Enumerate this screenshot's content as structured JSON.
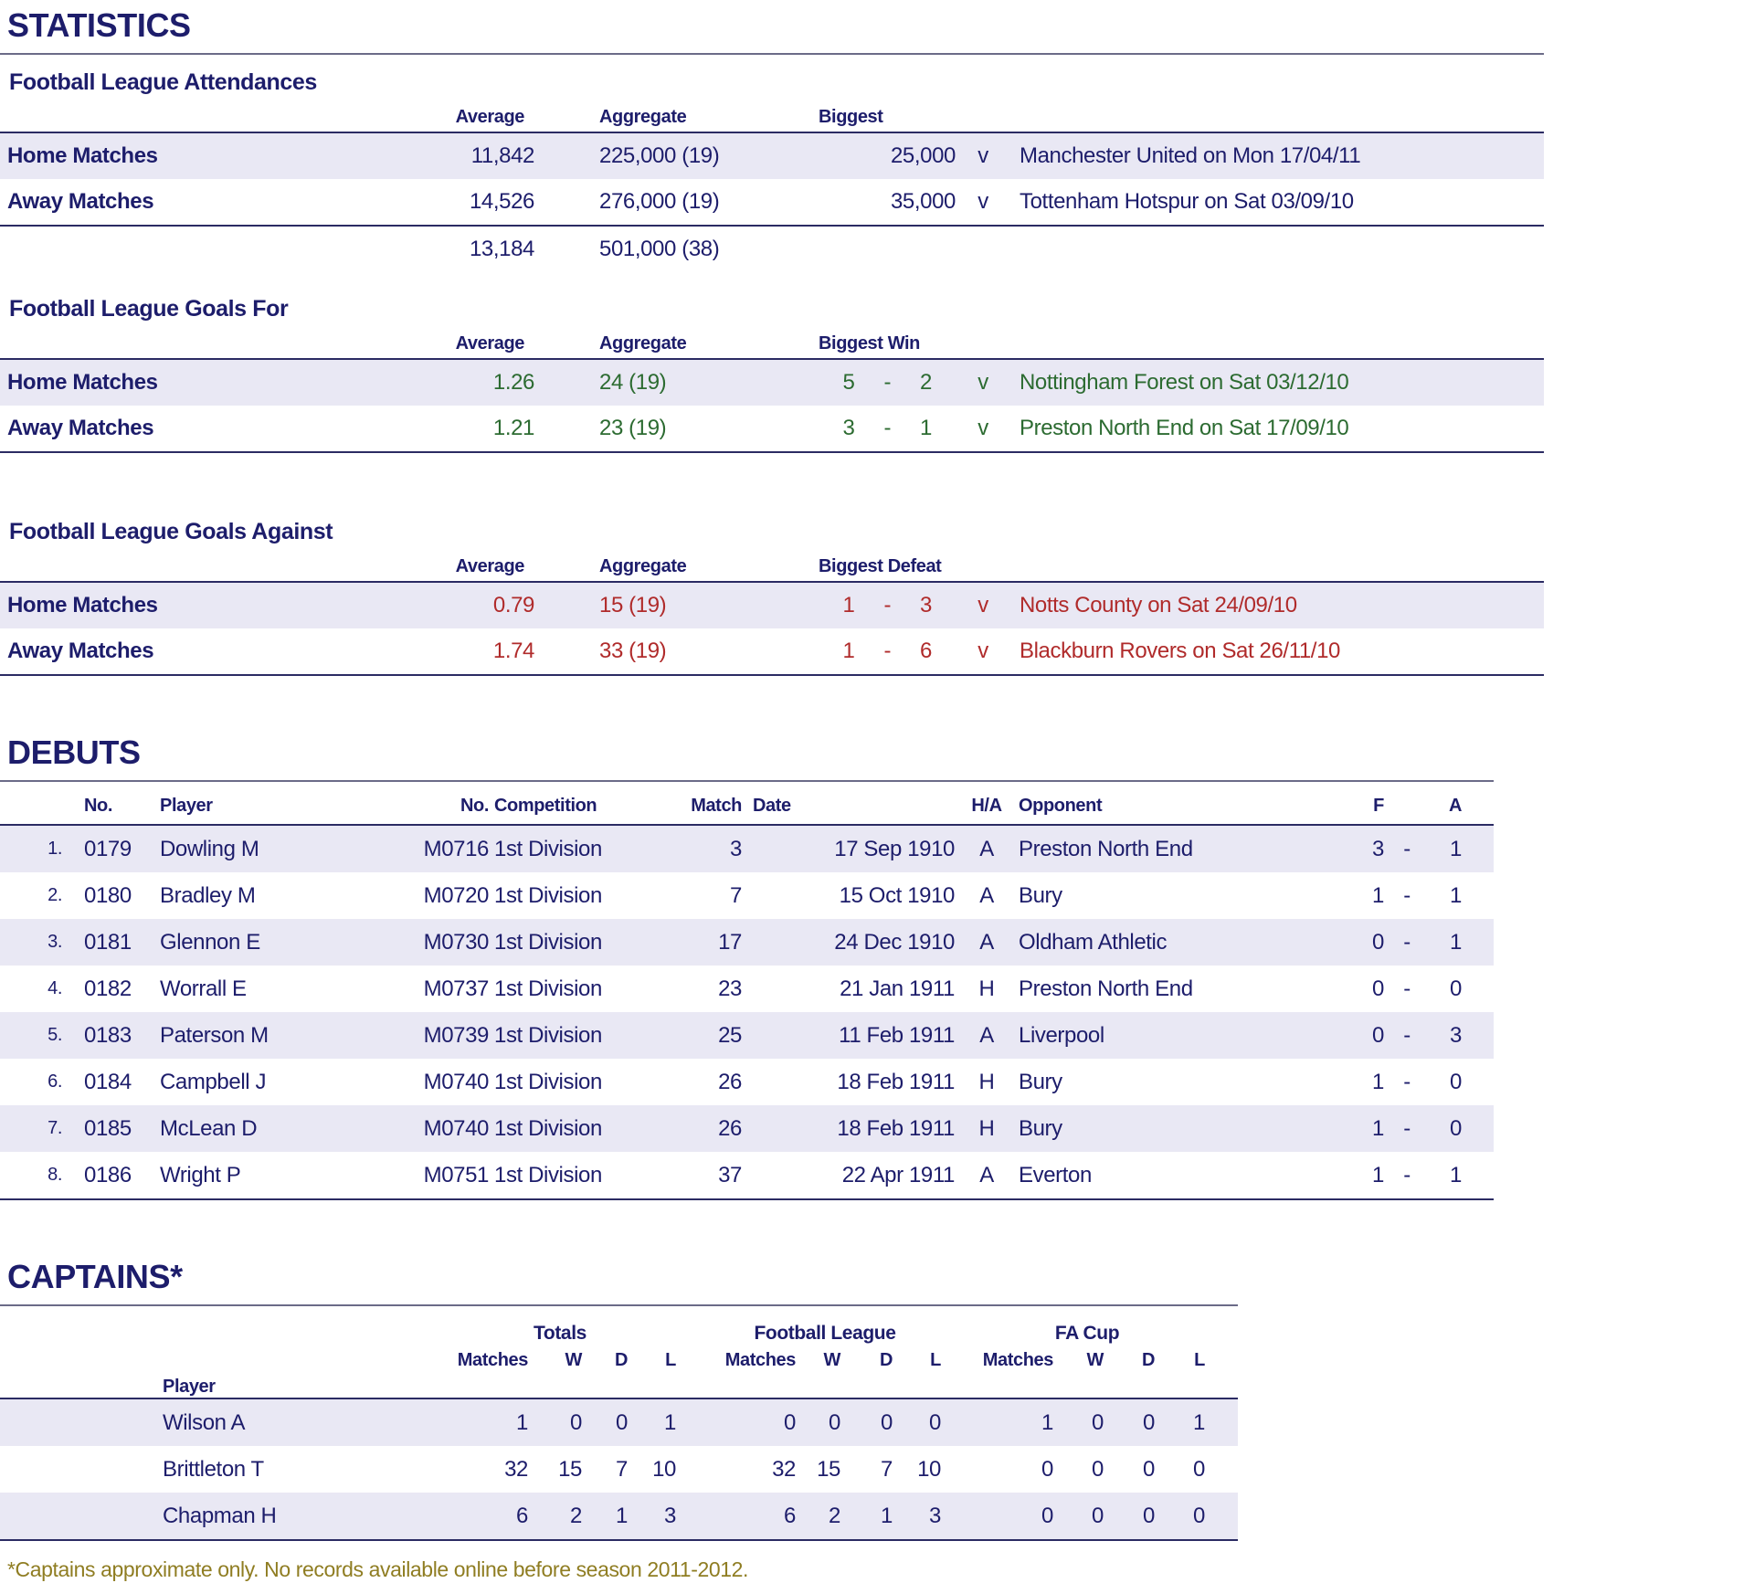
{
  "page": {
    "title": "STATISTICS",
    "footnote": "*Captains approximate only.  No records available online before season 2011-2012."
  },
  "labels": {
    "vs": "v",
    "dash": "-"
  },
  "colors": {
    "navy": "#1d1d6b",
    "green": "#2c6b31",
    "red": "#b02b2b",
    "olive": "#8f7d22",
    "row_stripe": "#e9e8f4"
  },
  "attendances": {
    "title": "Football League Attendances",
    "headers": {
      "average": "Average",
      "aggregate": "Aggregate",
      "biggest": "Biggest"
    },
    "rows": [
      {
        "label": "Home Matches",
        "average": "11,842",
        "aggregate": "225,000 (19)",
        "biggest": "25,000",
        "opponent": "Manchester United on Mon 17/04/11"
      },
      {
        "label": "Away Matches",
        "average": "14,526",
        "aggregate": "276,000 (19)",
        "biggest": "35,000",
        "opponent": "Tottenham Hotspur on Sat 03/09/10"
      }
    ],
    "totals": {
      "average": "13,184",
      "aggregate": "501,000 (38)"
    }
  },
  "goals_for": {
    "title": "Football League Goals For",
    "headers": {
      "average": "Average",
      "aggregate": "Aggregate",
      "biggest": "Biggest Win"
    },
    "rows": [
      {
        "label": "Home Matches",
        "average": "1.26",
        "aggregate": "24 (19)",
        "f": "5",
        "a": "2",
        "opponent": "Nottingham Forest on Sat 03/12/10"
      },
      {
        "label": "Away Matches",
        "average": "1.21",
        "aggregate": "23 (19)",
        "f": "3",
        "a": "1",
        "opponent": "Preston North End on Sat 17/09/10"
      }
    ]
  },
  "goals_against": {
    "title": "Football League Goals Against",
    "headers": {
      "average": "Average",
      "aggregate": "Aggregate",
      "biggest": "Biggest Defeat"
    },
    "rows": [
      {
        "label": "Home Matches",
        "average": "0.79",
        "aggregate": "15 (19)",
        "f": "1",
        "a": "3",
        "opponent": "Notts County on Sat 24/09/10"
      },
      {
        "label": "Away Matches",
        "average": "1.74",
        "aggregate": "33 (19)",
        "f": "1",
        "a": "6",
        "opponent": "Blackburn Rovers on Sat 26/11/10"
      }
    ]
  },
  "debuts": {
    "title": "DEBUTS",
    "headers": {
      "no": "No.",
      "player": "Player",
      "match_no": "No.",
      "competition": "Competition",
      "match": "Match",
      "date": "Date",
      "ha": "H/A",
      "opponent": "Opponent",
      "f": "F",
      "a": "A"
    },
    "rows": [
      {
        "idx": "1.",
        "no": "0179",
        "player": "Dowling M",
        "match_no": "M0716",
        "competition": "1st Division",
        "match": "3",
        "date": "17 Sep 1910",
        "ha": "A",
        "opponent": "Preston North End",
        "f": "3",
        "a": "1"
      },
      {
        "idx": "2.",
        "no": "0180",
        "player": "Bradley M",
        "match_no": "M0720",
        "competition": "1st Division",
        "match": "7",
        "date": "15 Oct 1910",
        "ha": "A",
        "opponent": "Bury",
        "f": "1",
        "a": "1"
      },
      {
        "idx": "3.",
        "no": "0181",
        "player": "Glennon E",
        "match_no": "M0730",
        "competition": "1st Division",
        "match": "17",
        "date": "24 Dec 1910",
        "ha": "A",
        "opponent": "Oldham Athletic",
        "f": "0",
        "a": "1"
      },
      {
        "idx": "4.",
        "no": "0182",
        "player": "Worrall E",
        "match_no": "M0737",
        "competition": "1st Division",
        "match": "23",
        "date": "21 Jan 1911",
        "ha": "H",
        "opponent": "Preston North End",
        "f": "0",
        "a": "0"
      },
      {
        "idx": "5.",
        "no": "0183",
        "player": "Paterson M",
        "match_no": "M0739",
        "competition": "1st Division",
        "match": "25",
        "date": "11 Feb 1911",
        "ha": "A",
        "opponent": "Liverpool",
        "f": "0",
        "a": "3"
      },
      {
        "idx": "6.",
        "no": "0184",
        "player": "Campbell J",
        "match_no": "M0740",
        "competition": "1st Division",
        "match": "26",
        "date": "18 Feb 1911",
        "ha": "H",
        "opponent": "Bury",
        "f": "1",
        "a": "0"
      },
      {
        "idx": "7.",
        "no": "0185",
        "player": "McLean D",
        "match_no": "M0740",
        "competition": "1st Division",
        "match": "26",
        "date": "18 Feb 1911",
        "ha": "H",
        "opponent": "Bury",
        "f": "1",
        "a": "0"
      },
      {
        "idx": "8.",
        "no": "0186",
        "player": "Wright P",
        "match_no": "M0751",
        "competition": "1st Division",
        "match": "37",
        "date": "22 Apr 1911",
        "ha": "A",
        "opponent": "Everton",
        "f": "1",
        "a": "1"
      }
    ]
  },
  "captains": {
    "title": "CAPTAINS*",
    "groups": {
      "totals": "Totals",
      "league": "Football League",
      "facup": "FA Cup"
    },
    "sub": {
      "matches": "Matches",
      "w": "W",
      "d": "D",
      "l": "L"
    },
    "player_header": "Player",
    "rows": [
      {
        "player": "Wilson A",
        "t_m": "1",
        "t_w": "0",
        "t_d": "0",
        "t_l": "1",
        "fl_m": "0",
        "fl_w": "0",
        "fl_d": "0",
        "fl_l": "0",
        "fa_m": "1",
        "fa_w": "0",
        "fa_d": "0",
        "fa_l": "1"
      },
      {
        "player": "Brittleton T",
        "t_m": "32",
        "t_w": "15",
        "t_d": "7",
        "t_l": "10",
        "fl_m": "32",
        "fl_w": "15",
        "fl_d": "7",
        "fl_l": "10",
        "fa_m": "0",
        "fa_w": "0",
        "fa_d": "0",
        "fa_l": "0"
      },
      {
        "player": "Chapman H",
        "t_m": "6",
        "t_w": "2",
        "t_d": "1",
        "t_l": "3",
        "fl_m": "6",
        "fl_w": "2",
        "fl_d": "1",
        "fl_l": "3",
        "fa_m": "0",
        "fa_w": "0",
        "fa_d": "0",
        "fa_l": "0"
      }
    ]
  }
}
